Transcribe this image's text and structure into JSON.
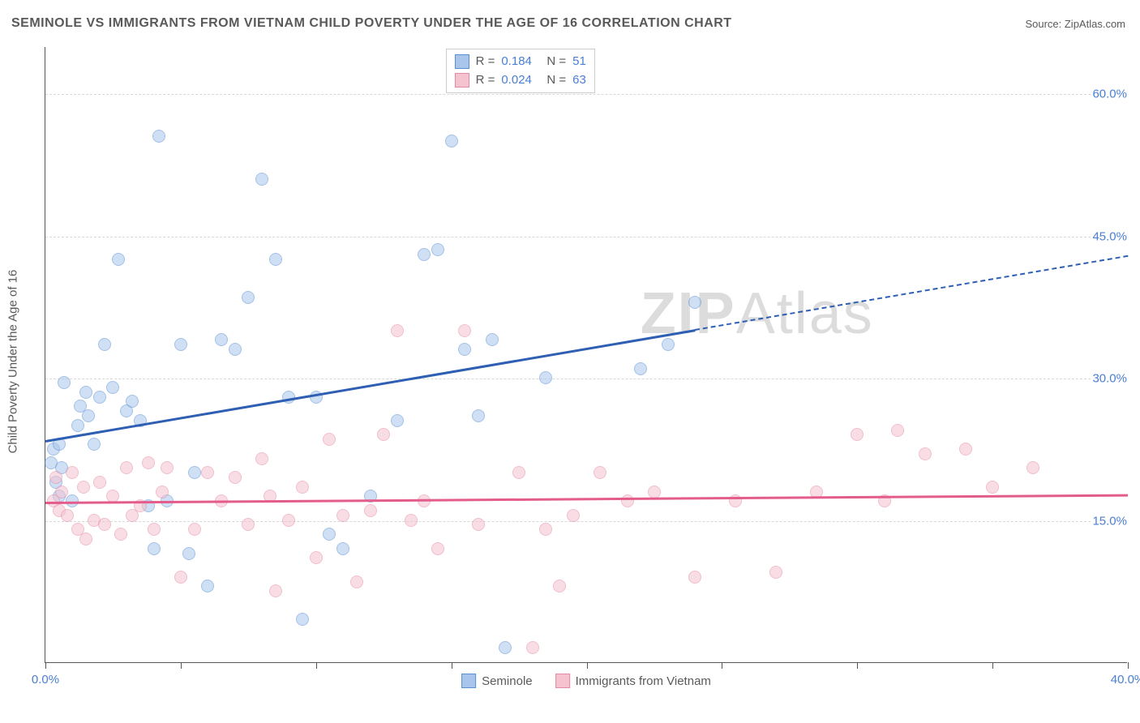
{
  "title": "SEMINOLE VS IMMIGRANTS FROM VIETNAM CHILD POVERTY UNDER THE AGE OF 16 CORRELATION CHART",
  "source": "Source: ZipAtlas.com",
  "y_axis_label": "Child Poverty Under the Age of 16",
  "watermark": {
    "bold": "ZIP",
    "light": "Atlas"
  },
  "chart": {
    "type": "scatter",
    "xlim": [
      0,
      40
    ],
    "ylim": [
      0,
      65
    ],
    "x_ticks": [
      0,
      5,
      10,
      15,
      20,
      25,
      30,
      35,
      40
    ],
    "x_tick_labels": {
      "0": "0.0%",
      "40": "40.0%"
    },
    "y_ticks": [
      15,
      30,
      45,
      60
    ],
    "y_tick_labels": [
      "15.0%",
      "30.0%",
      "45.0%",
      "60.0%"
    ],
    "background_color": "#ffffff",
    "grid_color": "#d8d8d8",
    "axis_color": "#555555",
    "marker_radius": 8,
    "marker_opacity": 0.55
  },
  "series": [
    {
      "name": "Seminole",
      "fill": "#a8c5ec",
      "stroke": "#5b8fd6",
      "trend_color": "#2e5fb3",
      "R": "0.184",
      "N": "51",
      "trend": {
        "x1": 0,
        "y1": 23.5,
        "x2": 40,
        "y2": 43.0,
        "solid_until_x": 24
      },
      "points": [
        [
          0.2,
          21
        ],
        [
          0.3,
          22.5
        ],
        [
          0.4,
          19
        ],
        [
          0.5,
          23
        ],
        [
          0.5,
          17.5
        ],
        [
          0.6,
          20.5
        ],
        [
          0.7,
          29.5
        ],
        [
          1.0,
          17
        ],
        [
          1.2,
          25
        ],
        [
          1.3,
          27
        ],
        [
          1.5,
          28.5
        ],
        [
          1.6,
          26
        ],
        [
          1.8,
          23
        ],
        [
          2.0,
          28
        ],
        [
          2.2,
          33.5
        ],
        [
          2.5,
          29
        ],
        [
          2.7,
          42.5
        ],
        [
          3.0,
          26.5
        ],
        [
          3.2,
          27.5
        ],
        [
          3.5,
          25.5
        ],
        [
          3.8,
          16.5
        ],
        [
          4.2,
          55.5
        ],
        [
          4.5,
          17
        ],
        [
          5.0,
          33.5
        ],
        [
          5.3,
          11.5
        ],
        [
          5.5,
          20
        ],
        [
          6.0,
          8
        ],
        [
          6.5,
          34
        ],
        [
          7.0,
          33
        ],
        [
          7.5,
          38.5
        ],
        [
          8.0,
          51
        ],
        [
          8.5,
          42.5
        ],
        [
          9.0,
          28
        ],
        [
          9.5,
          4.5
        ],
        [
          10.0,
          28
        ],
        [
          10.5,
          13.5
        ],
        [
          11.0,
          12
        ],
        [
          12.0,
          17.5
        ],
        [
          13.0,
          25.5
        ],
        [
          14.0,
          43
        ],
        [
          14.5,
          43.5
        ],
        [
          15.0,
          55
        ],
        [
          15.5,
          33
        ],
        [
          16.0,
          26
        ],
        [
          16.5,
          34
        ],
        [
          17.0,
          1.5
        ],
        [
          18.5,
          30
        ],
        [
          22.0,
          31
        ],
        [
          23.0,
          33.5
        ],
        [
          24.0,
          38
        ],
        [
          4.0,
          12
        ]
      ]
    },
    {
      "name": "Immigrants from Vietnam",
      "fill": "#f5c2cf",
      "stroke": "#e68aa3",
      "trend_color": "#e45c8c",
      "R": "0.024",
      "N": "63",
      "trend": {
        "x1": 0,
        "y1": 17.0,
        "x2": 40,
        "y2": 17.8,
        "solid_until_x": 40
      },
      "points": [
        [
          0.3,
          17
        ],
        [
          0.4,
          19.5
        ],
        [
          0.5,
          16
        ],
        [
          0.6,
          18
        ],
        [
          0.8,
          15.5
        ],
        [
          1.0,
          20
        ],
        [
          1.2,
          14
        ],
        [
          1.4,
          18.5
        ],
        [
          1.5,
          13
        ],
        [
          1.8,
          15
        ],
        [
          2.0,
          19
        ],
        [
          2.2,
          14.5
        ],
        [
          2.5,
          17.5
        ],
        [
          2.8,
          13.5
        ],
        [
          3.0,
          20.5
        ],
        [
          3.2,
          15.5
        ],
        [
          3.5,
          16.5
        ],
        [
          3.8,
          21
        ],
        [
          4.0,
          14
        ],
        [
          4.3,
          18
        ],
        [
          4.5,
          20.5
        ],
        [
          5.0,
          9
        ],
        [
          5.5,
          14
        ],
        [
          6.0,
          20
        ],
        [
          6.5,
          17
        ],
        [
          7.0,
          19.5
        ],
        [
          7.5,
          14.5
        ],
        [
          8.0,
          21.5
        ],
        [
          8.3,
          17.5
        ],
        [
          8.5,
          7.5
        ],
        [
          9.0,
          15
        ],
        [
          9.5,
          18.5
        ],
        [
          10.0,
          11
        ],
        [
          10.5,
          23.5
        ],
        [
          11.0,
          15.5
        ],
        [
          11.5,
          8.5
        ],
        [
          12.0,
          16
        ],
        [
          12.5,
          24
        ],
        [
          13.0,
          35
        ],
        [
          13.5,
          15
        ],
        [
          14.0,
          17
        ],
        [
          14.5,
          12
        ],
        [
          15.5,
          35
        ],
        [
          16.0,
          14.5
        ],
        [
          17.5,
          20
        ],
        [
          18.0,
          1.5
        ],
        [
          18.5,
          14
        ],
        [
          19.0,
          8
        ],
        [
          19.5,
          15.5
        ],
        [
          20.5,
          20
        ],
        [
          21.5,
          17
        ],
        [
          22.5,
          18
        ],
        [
          24.0,
          9
        ],
        [
          25.5,
          17
        ],
        [
          27.0,
          9.5
        ],
        [
          28.5,
          18
        ],
        [
          30.0,
          24
        ],
        [
          31.0,
          17
        ],
        [
          32.5,
          22
        ],
        [
          34.0,
          22.5
        ],
        [
          35.0,
          18.5
        ],
        [
          36.5,
          20.5
        ],
        [
          31.5,
          24.5
        ]
      ]
    }
  ],
  "stats_box": {
    "R_label": "R",
    "N_label": "N",
    "equals": "="
  },
  "legend": {
    "items": [
      {
        "label": "Seminole",
        "series_idx": 0
      },
      {
        "label": "Immigrants from Vietnam",
        "series_idx": 1
      }
    ]
  }
}
